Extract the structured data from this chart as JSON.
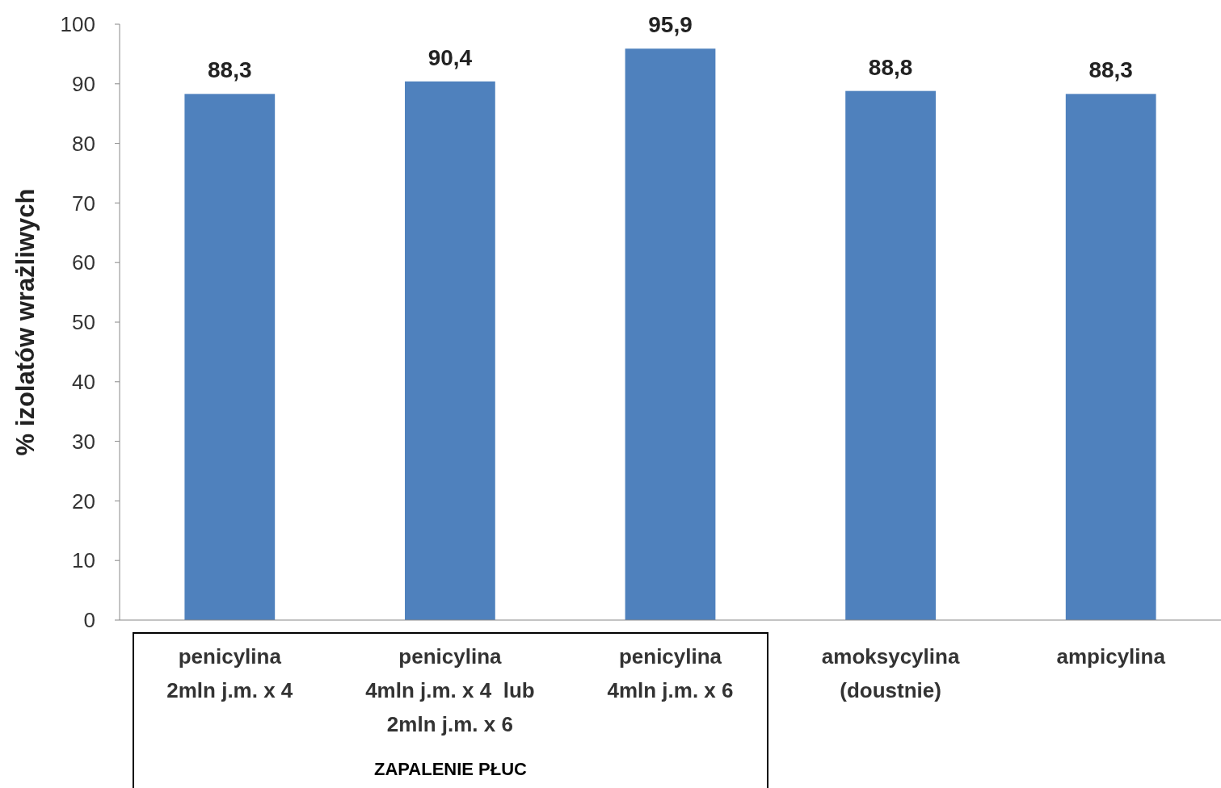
{
  "chart_data": {
    "type": "bar",
    "ylabel": "% izolatów wrażliwych",
    "categories": [
      "penicylina\n2mln j.m. x 4",
      "penicylina\n4mln j.m. x 4  lub\n2mln j.m. x 6",
      "penicylina\n4mln j.m. x 6",
      "amoksycylina\n(doustnie)",
      "ampicylina"
    ],
    "values": [
      88.3,
      90.4,
      95.9,
      88.8,
      88.3
    ],
    "value_labels": [
      "88,3",
      "90,4",
      "95,9",
      "88,8",
      "88,3"
    ],
    "color": "#4f81bd",
    "ylim": [
      0,
      100
    ],
    "yticks": [
      0,
      10,
      20,
      30,
      40,
      50,
      60,
      70,
      80,
      90,
      100
    ],
    "annotations": [
      "ZAPALENIE PŁUC"
    ]
  }
}
